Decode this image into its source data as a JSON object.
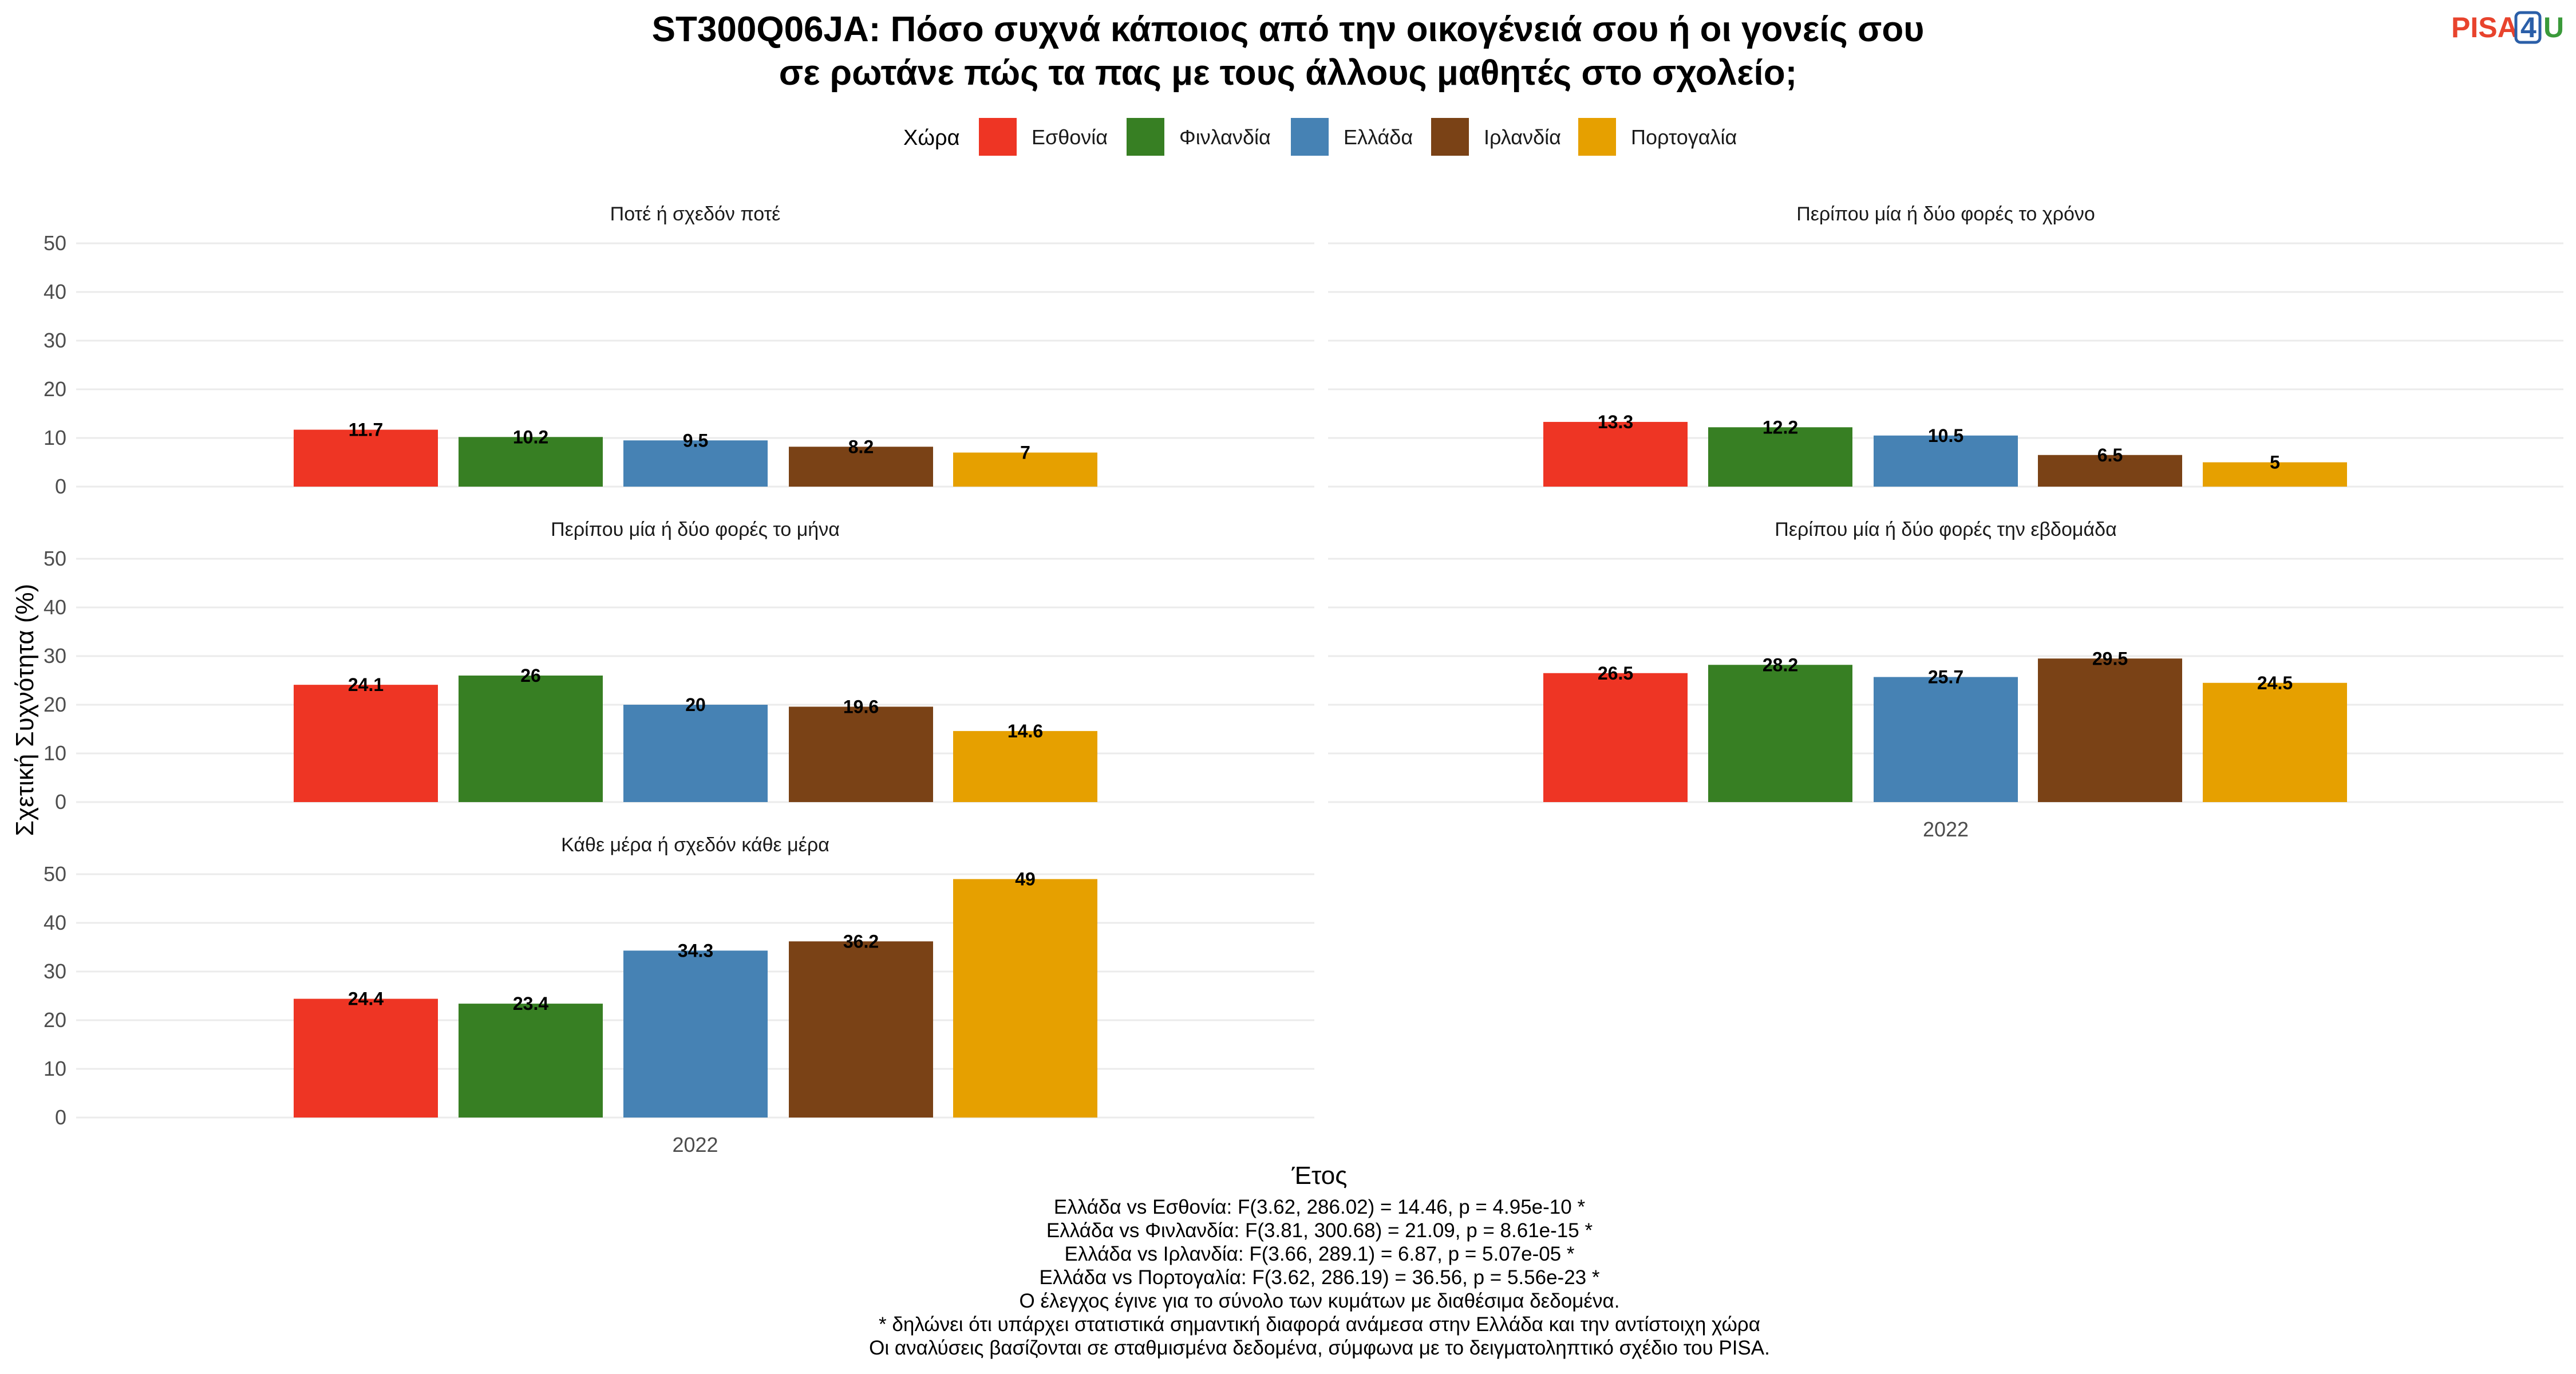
{
  "logo": {
    "text_a": "PISA",
    "text_b": "4",
    "text_c": "U",
    "color_a": "#e8432d",
    "color_b": "#2b5fa8",
    "color_c": "#3a9a3a"
  },
  "chart_data": {
    "type": "bar",
    "title_lines": [
      "ST300Q06JA: Πόσο συχνά κάποιος από την οικογένειά σου ή οι γονείς σου",
      "σε ρωτάνε πώς τα πας με τους άλλους μαθητές στο σχολείο;"
    ],
    "legend_title": "Χώρα",
    "legend_position": "top",
    "ylabel": "Σχετική Συχνότητα (%)",
    "xlabel": "Έτος",
    "ylim": [
      0,
      50
    ],
    "yticks": [
      0,
      10,
      20,
      30,
      40,
      50
    ],
    "x_category": "2022",
    "grid": true,
    "series": [
      {
        "name": "Εσθονία",
        "color": "#ee3524"
      },
      {
        "name": "Φινλανδία",
        "color": "#377f23"
      },
      {
        "name": "Ελλάδα",
        "color": "#4682b4"
      },
      {
        "name": "Ιρλανδία",
        "color": "#7a4216"
      },
      {
        "name": "Πορτογαλία",
        "color": "#e6a000"
      }
    ],
    "facets": [
      {
        "label": "Ποτέ ή σχεδόν ποτέ",
        "values": [
          11.7,
          10.2,
          9.5,
          8.2,
          7
        ],
        "labels": [
          "11.7",
          "10.2",
          "9.5",
          "8.2",
          "7"
        ]
      },
      {
        "label": "Περίπου μία ή δύο φορές το χρόνο",
        "values": [
          13.3,
          12.2,
          10.5,
          6.5,
          5
        ],
        "labels": [
          "13.3",
          "12.2",
          "10.5",
          "6.5",
          "5"
        ]
      },
      {
        "label": "Περίπου μία ή δύο φορές το μήνα",
        "values": [
          24.1,
          26,
          20,
          19.6,
          14.6
        ],
        "labels": [
          "24.1",
          "26",
          "20",
          "19.6",
          "14.6"
        ]
      },
      {
        "label": "Περίπου μία ή δύο φορές την εβδομάδα",
        "values": [
          26.5,
          28.2,
          25.7,
          29.5,
          24.5
        ],
        "labels": [
          "26.5",
          "28.2",
          "25.7",
          "29.5",
          "24.5"
        ]
      },
      {
        "label": "Κάθε μέρα ή σχεδόν κάθε μέρα",
        "values": [
          24.4,
          23.4,
          34.3,
          36.2,
          49
        ],
        "labels": [
          "24.4",
          "23.4",
          "34.3",
          "36.2",
          "49"
        ]
      }
    ],
    "footnotes": [
      "Ελλάδα vs Εσθονία: F(3.62, 286.02) = 14.46, p = 4.95e-10 *",
      "Ελλάδα vs Φινλανδία: F(3.81, 300.68) = 21.09, p = 8.61e-15 *",
      "Ελλάδα vs Ιρλανδία: F(3.66, 289.1) = 6.87, p = 5.07e-05 *",
      "Ελλάδα vs Πορτογαλία: F(3.62, 286.19) = 36.56, p = 5.56e-23 *",
      "Ο έλεγχος έγινε για το σύνολο των κυμάτων με διαθέσιμα δεδομένα.",
      "* δηλώνει ότι υπάρχει στατιστικά σημαντική διαφορά ανάμεσα στην Ελλάδα και την αντίστοιχη χώρα",
      "Οι αναλύσεις βασίζονται σε σταθμισμένα δεδομένα, σύμφωνα με το δειγματοληπτικό σχέδιο του PISA."
    ]
  }
}
